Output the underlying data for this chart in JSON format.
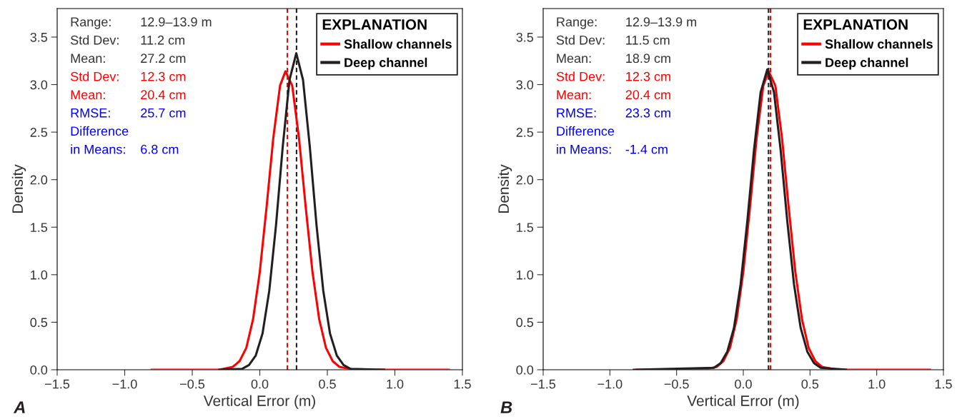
{
  "chart_data": [
    {
      "type": "line",
      "title": "A",
      "xlabel": "Vertical Error (m)",
      "ylabel": "Density",
      "legend_title": "EXPLANATION",
      "legend": "top right",
      "grid": false,
      "marker": "none",
      "line_style": "solid",
      "xlim": [
        -1.5,
        1.5
      ],
      "ylim": [
        0,
        3.8
      ],
      "xticks": [
        {
          "value": -1.5,
          "label": "−1.5"
        },
        {
          "value": -1.0,
          "label": "−1.0"
        },
        {
          "value": -0.5,
          "label": "−0.5"
        },
        {
          "value": 0,
          "label": "0.0"
        },
        {
          "value": 0.5,
          "label": "0.5"
        },
        {
          "value": 1.0,
          "label": "1.0"
        },
        {
          "value": 1.5,
          "label": "1.5"
        }
      ],
      "yticks": [
        {
          "value": 0,
          "label": "0.0"
        },
        {
          "value": 0.5,
          "label": "0.5"
        },
        {
          "value": 1.0,
          "label": "1.0"
        },
        {
          "value": 1.5,
          "label": "1.5"
        },
        {
          "value": 2.0,
          "label": "2.0"
        },
        {
          "value": 2.5,
          "label": "2.5"
        },
        {
          "value": 3.0,
          "label": "3.0"
        },
        {
          "value": 3.5,
          "label": "3.5"
        }
      ],
      "series": [
        {
          "name": "Shallow channels",
          "color": "#ff0000",
          "x": [
            -0.8,
            -0.3,
            -0.2,
            -0.15,
            -0.1,
            -0.05,
            0.0,
            0.05,
            0.1,
            0.15,
            0.19,
            0.24,
            0.29,
            0.34,
            0.39,
            0.44,
            0.49,
            0.54,
            0.59,
            0.7,
            1.4
          ],
          "values": [
            0,
            0,
            0.03,
            0.09,
            0.23,
            0.53,
            1.03,
            1.71,
            2.44,
            2.99,
            3.14,
            2.99,
            2.44,
            1.71,
            1.03,
            0.53,
            0.23,
            0.09,
            0.03,
            0,
            0
          ]
        },
        {
          "name": "Deep channel",
          "color": "#231f20",
          "x": [
            -0.3,
            -0.13,
            -0.08,
            -0.03,
            0.02,
            0.07,
            0.12,
            0.17,
            0.22,
            0.27,
            0.32,
            0.37,
            0.42,
            0.47,
            0.52,
            0.57,
            0.62,
            0.67,
            0.92
          ],
          "values": [
            0,
            0.01,
            0.05,
            0.15,
            0.38,
            0.83,
            1.52,
            2.35,
            3.05,
            3.33,
            3.05,
            2.35,
            1.52,
            0.83,
            0.38,
            0.15,
            0.05,
            0.01,
            0
          ]
        }
      ],
      "ref_lines": [
        {
          "axis": "x",
          "value": 0.204,
          "color": "#ff0000",
          "line_style": "dashed"
        },
        {
          "axis": "x",
          "value": 0.272,
          "color": "#231f20",
          "line_style": "dashed"
        }
      ],
      "annotations": [
        "Range:\t12.9–13.9 m",
        "Std Dev:\t11.2 cm",
        "Mean:\t27.2 cm",
        "Std Dev:\t12.3 cm",
        "Mean:\t20.4 cm",
        "RMSE:\t25.7 cm",
        "Difference",
        "in Means:\t6.8 cm"
      ]
    },
    {
      "type": "line",
      "title": "B",
      "xlabel": "Vertical Error (m)",
      "ylabel": "Density",
      "legend_title": "EXPLANATION",
      "legend": "top right",
      "grid": false,
      "marker": "none",
      "line_style": "solid",
      "xlim": [
        -1.5,
        1.5
      ],
      "ylim": [
        0,
        3.8
      ],
      "xticks": [
        {
          "value": -1.5,
          "label": "−1.5"
        },
        {
          "value": -1.0,
          "label": "−1.0"
        },
        {
          "value": -0.5,
          "label": "−0.5"
        },
        {
          "value": 0,
          "label": "0.0"
        },
        {
          "value": 0.5,
          "label": "0.5"
        },
        {
          "value": 1.0,
          "label": "1.0"
        },
        {
          "value": 1.5,
          "label": "1.5"
        }
      ],
      "yticks": [
        {
          "value": 0,
          "label": "0.0"
        },
        {
          "value": 0.5,
          "label": "0.5"
        },
        {
          "value": 1.0,
          "label": "1.0"
        },
        {
          "value": 1.5,
          "label": "1.5"
        },
        {
          "value": 2.0,
          "label": "2.0"
        },
        {
          "value": 2.5,
          "label": "2.5"
        },
        {
          "value": 3.0,
          "label": "3.0"
        },
        {
          "value": 3.5,
          "label": "3.5"
        }
      ],
      "series": [
        {
          "name": "Shallow channels",
          "color": "#ff0000",
          "x": [
            -0.8,
            -0.3,
            -0.2,
            -0.15,
            -0.1,
            -0.05,
            0.0,
            0.05,
            0.1,
            0.15,
            0.19,
            0.24,
            0.29,
            0.34,
            0.39,
            0.44,
            0.49,
            0.54,
            0.59,
            0.7,
            1.4
          ],
          "values": [
            0,
            0,
            0.03,
            0.09,
            0.23,
            0.53,
            1.03,
            1.71,
            2.44,
            2.99,
            3.14,
            2.99,
            2.44,
            1.71,
            1.03,
            0.53,
            0.23,
            0.09,
            0.03,
            0,
            0
          ]
        },
        {
          "name": "Deep channel",
          "color": "#231f20",
          "x": [
            -0.82,
            -0.22,
            -0.17,
            -0.12,
            -0.07,
            -0.02,
            0.03,
            0.08,
            0.13,
            0.18,
            0.23,
            0.28,
            0.33,
            0.38,
            0.43,
            0.48,
            0.53,
            0.58,
            0.77
          ],
          "values": [
            0,
            0.02,
            0.07,
            0.19,
            0.44,
            0.9,
            1.56,
            2.31,
            2.92,
            3.16,
            2.92,
            2.31,
            1.56,
            0.9,
            0.44,
            0.19,
            0.07,
            0.02,
            0
          ]
        }
      ],
      "ref_lines": [
        {
          "axis": "x",
          "value": 0.189,
          "color": "#231f20",
          "line_style": "dashed"
        },
        {
          "axis": "x",
          "value": 0.204,
          "color": "#ff0000",
          "line_style": "dashed"
        }
      ],
      "annotations": [
        "Range:\t12.9–13.9 m",
        "Std Dev:\t11.5 cm",
        "Mean:\t18.9 cm",
        "Std Dev:\t12.3 cm",
        "Mean:\t20.4 cm",
        "RMSE:\t23.3 cm",
        "Difference",
        "in Means:\t-1.4 cm"
      ]
    }
  ]
}
